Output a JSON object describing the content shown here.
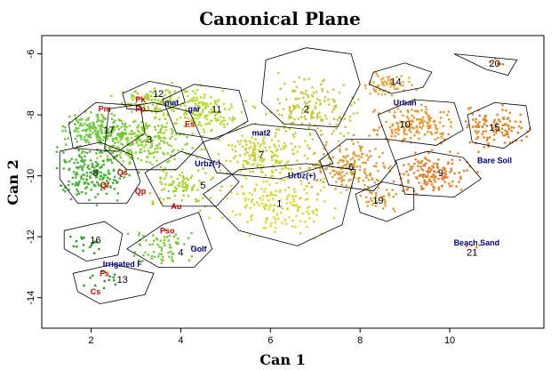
{
  "chart_data": {
    "type": "scatter",
    "title": "Canonical Plane",
    "xlabel": "Can 1",
    "ylabel": "Can 2",
    "xlim": [
      0.9,
      12.1
    ],
    "ylim": [
      -15.0,
      -5.4
    ],
    "xticks": [
      2,
      4,
      6,
      8,
      10
    ],
    "yticks": [
      -6,
      -8,
      -10,
      -12,
      -14
    ],
    "grid": false,
    "legend": "none",
    "clusters": [
      {
        "id": "1",
        "cx": 6.2,
        "cy": -10.9,
        "sx": 0.85,
        "sy": 0.65,
        "n": 170,
        "color": "#dcd828",
        "hull": [
          [
            4.5,
            -10.6
          ],
          [
            5.3,
            -9.8
          ],
          [
            6.8,
            -9.6
          ],
          [
            7.9,
            -9.8
          ],
          [
            7.6,
            -11.6
          ],
          [
            6.6,
            -12.3
          ],
          [
            5.3,
            -11.8
          ]
        ]
      },
      {
        "id": "2",
        "cx": 6.9,
        "cy": -7.9,
        "sx": 0.7,
        "sy": 0.7,
        "n": 170,
        "color": "#c8c83c",
        "hull": [
          [
            5.9,
            -6.2
          ],
          [
            6.8,
            -5.8
          ],
          [
            7.8,
            -6.0
          ],
          [
            8.0,
            -7.0
          ],
          [
            7.5,
            -8.4
          ],
          [
            6.3,
            -8.3
          ],
          [
            5.8,
            -7.6
          ]
        ]
      },
      {
        "id": "3",
        "cx": 3.2,
        "cy": -8.9,
        "sx": 0.6,
        "sy": 0.55,
        "n": 220,
        "color": "#8cd232",
        "hull": [
          [
            2.4,
            -7.8
          ],
          [
            3.4,
            -7.6
          ],
          [
            4.2,
            -7.9
          ],
          [
            4.5,
            -8.9
          ],
          [
            3.9,
            -9.8
          ],
          [
            2.8,
            -9.8
          ],
          [
            2.3,
            -9.1
          ]
        ]
      },
      {
        "id": "4",
        "cx": 3.6,
        "cy": -12.4,
        "sx": 0.55,
        "sy": 0.45,
        "n": 70,
        "color": "#78c83c",
        "hull": [
          [
            2.8,
            -12.4
          ],
          [
            3.6,
            -11.6
          ],
          [
            4.4,
            -11.2
          ],
          [
            4.7,
            -12.4
          ],
          [
            4.3,
            -13.0
          ],
          [
            3.5,
            -13.0
          ]
        ]
      },
      {
        "id": "5",
        "cx": 4.0,
        "cy": -10.3,
        "sx": 0.5,
        "sy": 0.45,
        "n": 90,
        "color": "#a0d728",
        "hull": [
          [
            3.2,
            -9.9
          ],
          [
            4.0,
            -9.2
          ],
          [
            4.9,
            -9.6
          ],
          [
            5.3,
            -10.2
          ],
          [
            4.8,
            -11.0
          ],
          [
            3.6,
            -11.0
          ]
        ]
      },
      {
        "id": "6",
        "cx": 7.8,
        "cy": -9.7,
        "sx": 0.6,
        "sy": 0.5,
        "n": 170,
        "color": "#dca03c",
        "hull": [
          [
            7.1,
            -9.5
          ],
          [
            7.7,
            -8.8
          ],
          [
            8.6,
            -8.8
          ],
          [
            8.8,
            -9.6
          ],
          [
            8.3,
            -10.5
          ],
          [
            7.3,
            -10.3
          ]
        ]
      },
      {
        "id": "7",
        "cx": 5.8,
        "cy": -9.3,
        "sx": 0.75,
        "sy": 0.5,
        "n": 170,
        "color": "#c8d232",
        "hull": [
          [
            4.5,
            -8.9
          ],
          [
            5.6,
            -8.3
          ],
          [
            7.0,
            -8.5
          ],
          [
            7.4,
            -9.6
          ],
          [
            6.2,
            -10.1
          ],
          [
            4.8,
            -9.9
          ]
        ]
      },
      {
        "id": "8",
        "cx": 2.0,
        "cy": -9.9,
        "sx": 0.55,
        "sy": 0.6,
        "n": 190,
        "color": "#46b432",
        "hull": [
          [
            1.3,
            -9.2
          ],
          [
            2.2,
            -8.9
          ],
          [
            2.9,
            -9.3
          ],
          [
            3.1,
            -10.2
          ],
          [
            2.8,
            -10.9
          ],
          [
            1.7,
            -10.9
          ],
          [
            1.3,
            -10.1
          ]
        ]
      },
      {
        "id": "9",
        "cx": 9.6,
        "cy": -9.9,
        "sx": 0.55,
        "sy": 0.45,
        "n": 150,
        "color": "#e68228",
        "hull": [
          [
            8.8,
            -9.5
          ],
          [
            9.5,
            -9.2
          ],
          [
            10.3,
            -9.4
          ],
          [
            10.7,
            -10.1
          ],
          [
            10.1,
            -10.7
          ],
          [
            9.0,
            -10.6
          ]
        ]
      },
      {
        "id": "10",
        "cx": 9.2,
        "cy": -8.3,
        "sx": 0.6,
        "sy": 0.45,
        "n": 160,
        "color": "#e6962d",
        "hull": [
          [
            8.4,
            -8.0
          ],
          [
            9.2,
            -7.5
          ],
          [
            10.1,
            -7.6
          ],
          [
            10.3,
            -8.5
          ],
          [
            9.7,
            -9.0
          ],
          [
            8.6,
            -8.8
          ]
        ]
      },
      {
        "id": "11",
        "cx": 4.4,
        "cy": -7.9,
        "sx": 0.6,
        "sy": 0.45,
        "n": 180,
        "color": "#b4dc28",
        "hull": [
          [
            3.6,
            -7.5
          ],
          [
            4.3,
            -7.0
          ],
          [
            5.3,
            -7.2
          ],
          [
            5.5,
            -8.2
          ],
          [
            4.8,
            -8.8
          ],
          [
            3.9,
            -8.6
          ]
        ]
      },
      {
        "id": "12",
        "cx": 3.3,
        "cy": -7.5,
        "sx": 0.45,
        "sy": 0.3,
        "n": 80,
        "color": "#a5d237",
        "hull": [
          [
            2.7,
            -7.3
          ],
          [
            3.3,
            -6.9
          ],
          [
            4.0,
            -7.1
          ],
          [
            4.1,
            -7.6
          ],
          [
            3.5,
            -7.9
          ],
          [
            2.8,
            -7.8
          ]
        ]
      },
      {
        "id": "13",
        "cx": 2.4,
        "cy": -13.4,
        "sx": 0.4,
        "sy": 0.35,
        "n": 14,
        "color": "#329628",
        "hull": [
          [
            1.6,
            -13.2
          ],
          [
            2.5,
            -12.9
          ],
          [
            3.4,
            -13.2
          ],
          [
            3.2,
            -13.9
          ],
          [
            2.2,
            -14.2
          ],
          [
            1.7,
            -13.8
          ]
        ]
      },
      {
        "id": "14",
        "cx": 8.6,
        "cy": -7.0,
        "sx": 0.4,
        "sy": 0.3,
        "n": 60,
        "color": "#e6aa3c",
        "hull": [
          [
            8.3,
            -6.6
          ],
          [
            9.0,
            -6.3
          ],
          [
            9.6,
            -6.6
          ],
          [
            9.4,
            -7.1
          ],
          [
            8.7,
            -7.3
          ],
          [
            8.2,
            -7.0
          ]
        ]
      },
      {
        "id": "15",
        "cx": 11.0,
        "cy": -8.4,
        "sx": 0.45,
        "sy": 0.45,
        "n": 110,
        "color": "#e6821e",
        "hull": [
          [
            10.4,
            -8.0
          ],
          [
            11.0,
            -7.6
          ],
          [
            11.7,
            -7.7
          ],
          [
            11.8,
            -8.5
          ],
          [
            11.2,
            -9.1
          ],
          [
            10.5,
            -8.9
          ]
        ]
      },
      {
        "id": "16",
        "cx": 1.9,
        "cy": -12.1,
        "sx": 0.35,
        "sy": 0.35,
        "n": 16,
        "color": "#289628",
        "hull": [
          [
            1.4,
            -11.8
          ],
          [
            2.3,
            -11.5
          ],
          [
            2.7,
            -11.9
          ],
          [
            2.6,
            -12.6
          ],
          [
            1.9,
            -12.8
          ],
          [
            1.4,
            -12.4
          ]
        ]
      },
      {
        "id": "17",
        "cx": 2.2,
        "cy": -8.5,
        "sx": 0.5,
        "sy": 0.45,
        "n": 190,
        "color": "#6ec83c",
        "hull": [
          [
            1.5,
            -8.3
          ],
          [
            2.1,
            -7.6
          ],
          [
            3.1,
            -7.7
          ],
          [
            3.2,
            -8.6
          ],
          [
            2.6,
            -9.2
          ],
          [
            1.6,
            -9.1
          ]
        ]
      },
      {
        "id": "19",
        "cx": 8.4,
        "cy": -10.8,
        "sx": 0.35,
        "sy": 0.3,
        "n": 35,
        "color": "#d2a532",
        "hull": [
          [
            7.9,
            -10.6
          ],
          [
            8.5,
            -10.2
          ],
          [
            9.2,
            -10.4
          ],
          [
            9.2,
            -11.1
          ],
          [
            8.6,
            -11.5
          ],
          [
            8.0,
            -11.2
          ]
        ]
      },
      {
        "id": "20",
        "cx": 11.1,
        "cy": -6.3,
        "sx": 0.3,
        "sy": 0.12,
        "n": 6,
        "color": "#e67814",
        "hull": [
          [
            10.1,
            -6.0
          ],
          [
            11.5,
            -6.2
          ],
          [
            11.3,
            -6.7
          ],
          [
            10.8,
            -6.5
          ]
        ]
      },
      {
        "id": "21",
        "cx": 10.5,
        "cy": -12.3,
        "sx": 0.15,
        "sy": 0.2,
        "n": 4,
        "color": "#e6781e",
        "hull": []
      }
    ],
    "region_labels": [
      {
        "text": "17",
        "x": 2.4,
        "y": -8.5,
        "color": "#000000"
      },
      {
        "text": "12",
        "x": 3.5,
        "y": -7.3,
        "color": "#000000"
      },
      {
        "text": "3",
        "x": 3.3,
        "y": -8.8,
        "color": "#000000"
      },
      {
        "text": "11",
        "x": 4.8,
        "y": -7.8,
        "color": "#000000"
      },
      {
        "text": "2",
        "x": 6.8,
        "y": -7.8,
        "color": "#000000"
      },
      {
        "text": "7",
        "x": 5.8,
        "y": -9.3,
        "color": "#000000"
      },
      {
        "text": "8",
        "x": 2.1,
        "y": -9.9,
        "color": "#000000"
      },
      {
        "text": "5",
        "x": 4.5,
        "y": -10.3,
        "color": "#000000"
      },
      {
        "text": "1",
        "x": 6.2,
        "y": -10.9,
        "color": "#000000"
      },
      {
        "text": "6",
        "x": 7.8,
        "y": -9.7,
        "color": "#000000"
      },
      {
        "text": "9",
        "x": 9.8,
        "y": -9.9,
        "color": "#000000"
      },
      {
        "text": "10",
        "x": 9.0,
        "y": -8.3,
        "color": "#000000"
      },
      {
        "text": "14",
        "x": 8.8,
        "y": -6.9,
        "color": "#000000"
      },
      {
        "text": "15",
        "x": 11.0,
        "y": -8.4,
        "color": "#000000"
      },
      {
        "text": "20",
        "x": 11.0,
        "y": -6.3,
        "color": "#000000"
      },
      {
        "text": "19",
        "x": 8.4,
        "y": -10.8,
        "color": "#000000"
      },
      {
        "text": "21",
        "x": 10.5,
        "y": -12.5,
        "color": "#000000"
      },
      {
        "text": "16",
        "x": 2.1,
        "y": -12.1,
        "color": "#000000"
      },
      {
        "text": "4",
        "x": 4.0,
        "y": -12.5,
        "color": "#000000"
      },
      {
        "text": "13",
        "x": 2.7,
        "y": -13.4,
        "color": "#000000"
      }
    ],
    "annotations": [
      {
        "text": "Pk",
        "x": 3.1,
        "y": -7.5,
        "color": "#cc0000"
      },
      {
        "text": "Pm",
        "x": 2.3,
        "y": -7.8,
        "color": "#cc0000"
      },
      {
        "text": "Pp",
        "x": 3.1,
        "y": -7.8,
        "color": "#cc0000"
      },
      {
        "text": "mat",
        "x": 3.8,
        "y": -7.6,
        "color": "#000080"
      },
      {
        "text": "gar",
        "x": 4.3,
        "y": -7.8,
        "color": "#000080"
      },
      {
        "text": "Es",
        "x": 4.2,
        "y": -8.3,
        "color": "#cc0000"
      },
      {
        "text": "mat2",
        "x": 5.8,
        "y": -8.6,
        "color": "#000080"
      },
      {
        "text": "Urbz(-)",
        "x": 4.6,
        "y": -9.6,
        "color": "#000080"
      },
      {
        "text": "Urbz(+)",
        "x": 6.7,
        "y": -10.0,
        "color": "#000080"
      },
      {
        "text": "Qs",
        "x": 2.7,
        "y": -9.9,
        "color": "#cc0000"
      },
      {
        "text": "Qi",
        "x": 2.3,
        "y": -10.3,
        "color": "#cc0000"
      },
      {
        "text": "Qp",
        "x": 3.1,
        "y": -10.5,
        "color": "#cc0000"
      },
      {
        "text": "Au",
        "x": 3.9,
        "y": -11.0,
        "color": "#cc0000"
      },
      {
        "text": "Pso",
        "x": 3.7,
        "y": -11.8,
        "color": "#cc0000"
      },
      {
        "text": "Golf",
        "x": 4.4,
        "y": -12.4,
        "color": "#000080"
      },
      {
        "text": "Irrigated F",
        "x": 2.7,
        "y": -12.9,
        "color": "#000080"
      },
      {
        "text": "Fs",
        "x": 2.3,
        "y": -13.2,
        "color": "#cc0000"
      },
      {
        "text": "Cs",
        "x": 2.1,
        "y": -13.8,
        "color": "#cc0000"
      },
      {
        "text": "Urban",
        "x": 9.0,
        "y": -7.6,
        "color": "#000080"
      },
      {
        "text": "Bare Soil",
        "x": 11.0,
        "y": -9.5,
        "color": "#000080"
      },
      {
        "text": "Beach Sand",
        "x": 10.6,
        "y": -12.2,
        "color": "#000080"
      }
    ]
  }
}
